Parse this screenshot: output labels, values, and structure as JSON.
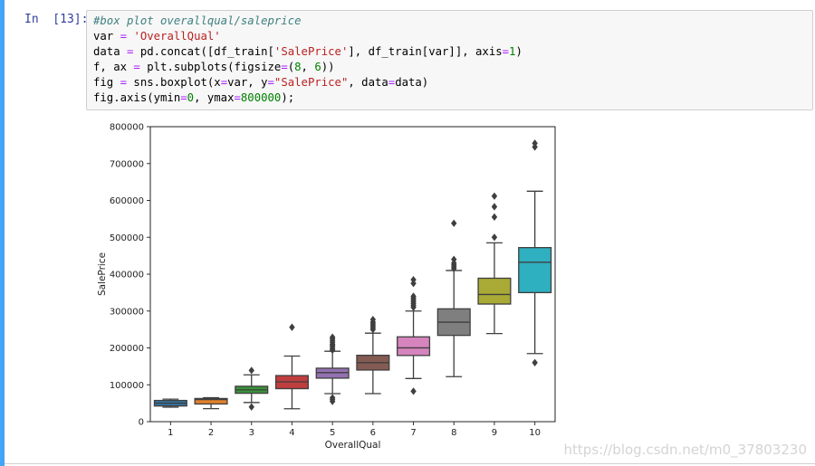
{
  "cell": {
    "prompt": "In  [13]:",
    "code_lines": [
      "#box plot overallqual/saleprice",
      "var = 'OverallQual'",
      "data = pd.concat([df_train['SalePrice'], df_train[var]], axis=1)",
      "f, ax = plt.subplots(figsize=(8, 6))",
      "fig = sns.boxplot(x=var, y=\"SalePrice\", data=data)",
      "fig.axis(ymin=0, ymax=800000);"
    ]
  },
  "watermark": "https://blog.csdn.net/m0_37803230",
  "chart_data": {
    "type": "box",
    "xlabel": "OverallQual",
    "ylabel": "SalePrice",
    "ylim": [
      0,
      800000
    ],
    "yticks": [
      "0",
      "100000",
      "200000",
      "300000",
      "400000",
      "500000",
      "600000",
      "700000",
      "800000"
    ],
    "categories": [
      "1",
      "2",
      "3",
      "4",
      "5",
      "6",
      "7",
      "8",
      "9",
      "10"
    ],
    "colors": [
      "#3274a1",
      "#e1812c",
      "#3a923a",
      "#c03d3e",
      "#9372b2",
      "#845b53",
      "#d684bd",
      "#7f7f7f",
      "#a9aa35",
      "#2eb0c0"
    ],
    "boxes": [
      {
        "whislo": 39300,
        "q1": 42500,
        "med": 50150,
        "q3": 57500,
        "whishi": 61000,
        "fliers": []
      },
      {
        "whislo": 35300,
        "q1": 48000,
        "med": 60000,
        "q3": 62800,
        "whishi": 65000,
        "fliers": []
      },
      {
        "whislo": 52000,
        "q1": 77000,
        "med": 86250,
        "q3": 96000,
        "whishi": 127000,
        "fliers": [
          40000,
          139000
        ]
      },
      {
        "whislo": 34900,
        "q1": 89500,
        "med": 108000,
        "q3": 125000,
        "whishi": 178000,
        "fliers": [
          256000
        ]
      },
      {
        "whislo": 76000,
        "q1": 118000,
        "med": 133000,
        "q3": 145000,
        "whishi": 191000,
        "fliers": [
          55000,
          60000,
          65000,
          194000,
          198000,
          203000,
          207000,
          210000,
          215000,
          220000,
          225000,
          229000
        ]
      },
      {
        "whislo": 76000,
        "q1": 140000,
        "med": 160000,
        "q3": 180000,
        "whishi": 240000,
        "fliers": [
          250000,
          255000,
          260000,
          265000,
          270000,
          277000
        ]
      },
      {
        "whislo": 117000,
        "q1": 179500,
        "med": 200141,
        "q3": 230000,
        "whishi": 300000,
        "fliers": [
          82500,
          310000,
          315000,
          320000,
          325000,
          330000,
          335000,
          340000,
          375000,
          385000
        ]
      },
      {
        "whislo": 122000,
        "q1": 234000,
        "med": 269750,
        "q3": 306000,
        "whishi": 410000,
        "fliers": [
          415000,
          420000,
          425000,
          430000,
          440000,
          538000
        ]
      },
      {
        "whislo": 239000,
        "q1": 319000,
        "med": 345000,
        "q3": 389000,
        "whishi": 485000,
        "fliers": [
          500000,
          555000,
          582900,
          611657
        ]
      },
      {
        "whislo": 184750,
        "q1": 350000,
        "med": 432390,
        "q3": 472000,
        "whishi": 625000,
        "fliers": [
          160000,
          745000,
          755000
        ]
      }
    ]
  }
}
